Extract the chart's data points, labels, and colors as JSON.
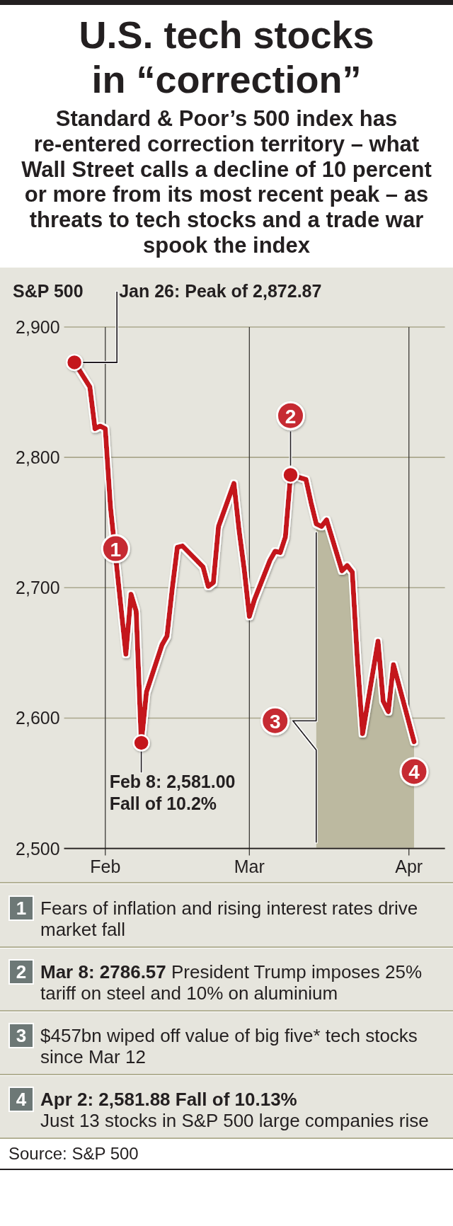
{
  "chart_data": {
    "type": "line",
    "title": "U.S. tech stocks in “correction”",
    "subtitle": "Standard & Poor’s 500 index has re-entered correction territory – what Wall Street calls a decline of 10 percent or more from its most recent peak – as threats to tech stocks and a trade war spook the index",
    "ylabel": "S&P 500",
    "x": [
      "--01-26",
      "--01-29",
      "--01-30",
      "--01-31",
      "--02-01",
      "--02-02",
      "--02-05",
      "--02-06",
      "--02-07",
      "--02-08",
      "--02-09",
      "--02-12",
      "--02-13",
      "--02-14",
      "--02-15",
      "--02-16",
      "--02-20",
      "--02-21",
      "--02-22",
      "--02-23",
      "--02-26",
      "--02-27",
      "--02-28",
      "--03-01",
      "--03-02",
      "--03-05",
      "--03-06",
      "--03-07",
      "--03-08",
      "--03-09",
      "--03-12",
      "--03-13",
      "--03-14",
      "--03-15",
      "--03-16",
      "--03-19",
      "--03-20",
      "--03-21",
      "--03-22",
      "--03-23",
      "--03-26",
      "--03-27",
      "--03-28",
      "--03-29",
      "--04-02"
    ],
    "series": [
      {
        "type": "area",
        "color": "#bcb9a0",
        "x": [
          "--03-14",
          "--03-15",
          "--03-16",
          "--03-19",
          "--03-20",
          "--03-21",
          "--03-22",
          "--03-23",
          "--03-26",
          "--03-27",
          "--03-28",
          "--03-29",
          "--04-02"
        ],
        "values": [
          2749,
          2747,
          2752,
          2713,
          2717,
          2712,
          2644,
          2588,
          2659,
          2613,
          2605,
          2641,
          2581.88
        ]
      },
      {
        "color": "#c4121f",
        "values": [
          2872.87,
          2854,
          2822,
          2824,
          2822,
          2762,
          2649,
          2695,
          2682,
          2581,
          2620,
          2656,
          2663,
          2699,
          2731,
          2732,
          2716,
          2701,
          2704,
          2747,
          2780,
          2744,
          2714,
          2678,
          2691,
          2721,
          2728,
          2727,
          2739,
          2786.57,
          2783,
          2765,
          2749,
          2747,
          2752,
          2713,
          2717,
          2712,
          2644,
          2588,
          2659,
          2613,
          2605,
          2641,
          2581.88
        ]
      },
      {
        "type": "scatter",
        "color": "#c4121f",
        "marker": "circle",
        "x": [
          "--01-26",
          "--02-08",
          "--03-09"
        ],
        "values": [
          2872.87,
          2581,
          2786.57
        ]
      }
    ],
    "xlim": [
      "--01-24",
      "--04-08"
    ],
    "xticks": [
      {
        "value": "--02-01",
        "label": "Feb"
      },
      {
        "value": "--03-01",
        "label": "Mar"
      },
      {
        "value": "--04-01",
        "label": "Apr"
      }
    ],
    "ylim": [
      2500,
      2900
    ],
    "yticks": [
      {
        "value": 2500,
        "label": "2,500"
      },
      {
        "value": 2600,
        "label": "2,600"
      },
      {
        "value": 2700,
        "label": "2,700"
      },
      {
        "value": 2800,
        "label": "2,800"
      },
      {
        "value": 2900,
        "label": "2,900"
      }
    ],
    "grid": true,
    "annotations": [
      "Source: S&P 500",
      {
        "text": "Jan 26: Peak of 2,872.87",
        "x": "--01-26",
        "y": 2872.87
      },
      {
        "text": "Feb 8: 2,581.00 Fall of 10.2%",
        "x": "--02-08",
        "y": 2581
      },
      {
        "text": "1",
        "x": "--02-03",
        "y": 2730
      },
      "Fears of inflation and rising interest rates drive market fall",
      {
        "text": "2",
        "x": "--03-09",
        "y": 2832
      },
      "Mar 8: 2786.57",
      "President Trump imposes 25% tariff on steel and 10% on aluminium",
      {
        "text": "3",
        "x": "--03-06",
        "y": 2598
      },
      "$457bn wiped off value of big five* tech stocks since Mar 12",
      {
        "text": "4",
        "x": "--04-02",
        "y": 2559
      },
      "Apr 2: 2,581.88 Fall of 10.13%",
      "Just 13 stocks in S&P 500 large companies rise"
    ]
  }
}
